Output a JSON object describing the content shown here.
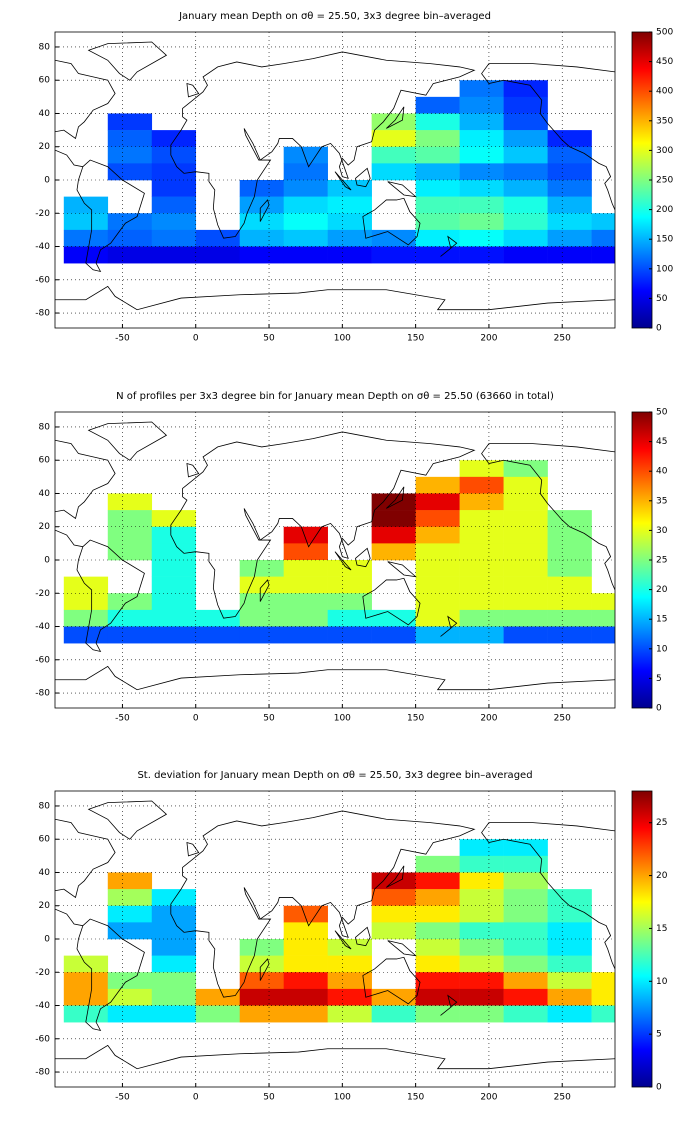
{
  "chart_data": [
    {
      "type": "heatmap",
      "title": "January mean Depth on σθ = 25.50, 3x3 degree bin–averaged",
      "x": [
        -75,
        -45,
        -15,
        15,
        45,
        75,
        105,
        135,
        165,
        195,
        225,
        255,
        285
      ],
      "y": [
        55,
        45,
        35,
        25,
        15,
        5,
        -5,
        -15,
        -25,
        -35,
        -45
      ],
      "values": [
        [
          null,
          null,
          null,
          null,
          null,
          null,
          null,
          null,
          null,
          120,
          80,
          null,
          null
        ],
        [
          null,
          null,
          null,
          null,
          null,
          null,
          null,
          null,
          110,
          130,
          90,
          null,
          null
        ],
        [
          null,
          90,
          null,
          null,
          null,
          null,
          null,
          260,
          200,
          150,
          100,
          null,
          null
        ],
        [
          null,
          110,
          80,
          null,
          null,
          null,
          null,
          300,
          250,
          180,
          140,
          80,
          null
        ],
        [
          null,
          120,
          100,
          null,
          null,
          130,
          null,
          220,
          230,
          190,
          160,
          110,
          null
        ],
        [
          null,
          100,
          90,
          null,
          null,
          120,
          null,
          170,
          150,
          130,
          120,
          100,
          null
        ],
        [
          null,
          null,
          90,
          null,
          110,
          130,
          160,
          null,
          180,
          170,
          150,
          120,
          null
        ],
        [
          150,
          null,
          110,
          null,
          140,
          170,
          180,
          null,
          220,
          220,
          200,
          150,
          null
        ],
        [
          160,
          120,
          130,
          null,
          170,
          190,
          170,
          null,
          230,
          240,
          210,
          170,
          160
        ],
        [
          120,
          110,
          120,
          100,
          150,
          160,
          140,
          130,
          180,
          190,
          170,
          140,
          120
        ],
        [
          60,
          50,
          50,
          50,
          60,
          60,
          60,
          70,
          70,
          70,
          60,
          60,
          60
        ]
      ],
      "xlim": [
        -96,
        286
      ],
      "ylim": [
        -89,
        89
      ],
      "xticks": [
        -50,
        0,
        50,
        100,
        150,
        200,
        250
      ],
      "yticks": [
        -80,
        -60,
        -40,
        -20,
        0,
        20,
        40,
        60,
        80
      ],
      "grid": true,
      "colormap": "jet",
      "clim": [
        0,
        500
      ],
      "cticks": [
        0,
        50,
        100,
        150,
        200,
        250,
        300,
        350,
        400,
        450,
        500
      ]
    },
    {
      "type": "heatmap",
      "title": "N of profiles per 3x3 degree bin for January mean Depth on σθ = 25.50 (63660 in total)",
      "x": [
        -75,
        -45,
        -15,
        15,
        45,
        75,
        105,
        135,
        165,
        195,
        225,
        255,
        285
      ],
      "y": [
        55,
        45,
        35,
        25,
        15,
        5,
        -5,
        -15,
        -25,
        -35,
        -45
      ],
      "values": [
        [
          null,
          null,
          null,
          null,
          null,
          null,
          null,
          null,
          null,
          30,
          25,
          null,
          null
        ],
        [
          null,
          null,
          null,
          null,
          null,
          null,
          null,
          null,
          35,
          40,
          30,
          null,
          null
        ],
        [
          null,
          30,
          null,
          null,
          null,
          null,
          null,
          50,
          45,
          35,
          30,
          null,
          null
        ],
        [
          null,
          25,
          30,
          null,
          null,
          null,
          null,
          50,
          40,
          30,
          30,
          25,
          null
        ],
        [
          null,
          25,
          20,
          null,
          null,
          45,
          null,
          45,
          35,
          30,
          30,
          25,
          null
        ],
        [
          null,
          25,
          20,
          null,
          null,
          40,
          null,
          35,
          30,
          30,
          30,
          25,
          null
        ],
        [
          null,
          null,
          20,
          null,
          25,
          30,
          30,
          null,
          30,
          30,
          30,
          25,
          null
        ],
        [
          30,
          null,
          20,
          null,
          30,
          30,
          30,
          null,
          30,
          30,
          30,
          30,
          null
        ],
        [
          30,
          25,
          20,
          null,
          25,
          25,
          25,
          null,
          30,
          30,
          30,
          30,
          30
        ],
        [
          25,
          20,
          20,
          20,
          25,
          25,
          20,
          20,
          30,
          25,
          25,
          25,
          25
        ],
        [
          10,
          10,
          10,
          10,
          10,
          10,
          10,
          10,
          15,
          15,
          10,
          10,
          10
        ]
      ],
      "xlim": [
        -96,
        286
      ],
      "ylim": [
        -89,
        89
      ],
      "xticks": [
        -50,
        0,
        50,
        100,
        150,
        200,
        250
      ],
      "yticks": [
        -80,
        -60,
        -40,
        -20,
        0,
        20,
        40,
        60,
        80
      ],
      "grid": true,
      "colormap": "jet",
      "clim": [
        0,
        50
      ],
      "cticks": [
        0,
        5,
        10,
        15,
        20,
        25,
        30,
        35,
        40,
        45,
        50
      ]
    },
    {
      "type": "heatmap",
      "title": "St. deviation for January mean Depth on σθ = 25.50, 3x3 degree bin–averaged",
      "x": [
        -75,
        -45,
        -15,
        15,
        45,
        75,
        105,
        135,
        165,
        195,
        225,
        255,
        285
      ],
      "y": [
        55,
        45,
        35,
        25,
        15,
        5,
        -5,
        -15,
        -25,
        -35,
        -45
      ],
      "values": [
        [
          null,
          null,
          null,
          null,
          null,
          null,
          null,
          null,
          null,
          10,
          10,
          null,
          null
        ],
        [
          null,
          null,
          null,
          null,
          null,
          null,
          null,
          null,
          14,
          12,
          12,
          null,
          null
        ],
        [
          null,
          20,
          null,
          null,
          null,
          null,
          null,
          26,
          24,
          18,
          15,
          null,
          null
        ],
        [
          null,
          15,
          10,
          null,
          null,
          null,
          null,
          22,
          20,
          16,
          14,
          12,
          null
        ],
        [
          null,
          10,
          8,
          null,
          null,
          22,
          null,
          18,
          18,
          16,
          14,
          12,
          null
        ],
        [
          null,
          8,
          8,
          null,
          null,
          18,
          null,
          16,
          14,
          12,
          12,
          10,
          null
        ],
        [
          null,
          null,
          8,
          null,
          14,
          18,
          16,
          null,
          16,
          14,
          12,
          10,
          null
        ],
        [
          16,
          null,
          10,
          null,
          16,
          18,
          18,
          null,
          18,
          16,
          14,
          12,
          null
        ],
        [
          20,
          14,
          14,
          null,
          22,
          24,
          20,
          null,
          24,
          24,
          20,
          16,
          18
        ],
        [
          20,
          16,
          14,
          20,
          26,
          26,
          24,
          20,
          26,
          26,
          24,
          20,
          18
        ],
        [
          12,
          10,
          10,
          14,
          20,
          20,
          16,
          12,
          14,
          14,
          12,
          10,
          12
        ]
      ],
      "xlim": [
        -96,
        286
      ],
      "ylim": [
        -89,
        89
      ],
      "xticks": [
        -50,
        0,
        50,
        100,
        150,
        200,
        250
      ],
      "yticks": [
        -80,
        -60,
        -40,
        -20,
        0,
        20,
        40,
        60,
        80
      ],
      "grid": true,
      "colormap": "jet",
      "clim": [
        0,
        28
      ],
      "cticks": [
        0,
        5,
        10,
        15,
        20,
        25
      ]
    }
  ]
}
